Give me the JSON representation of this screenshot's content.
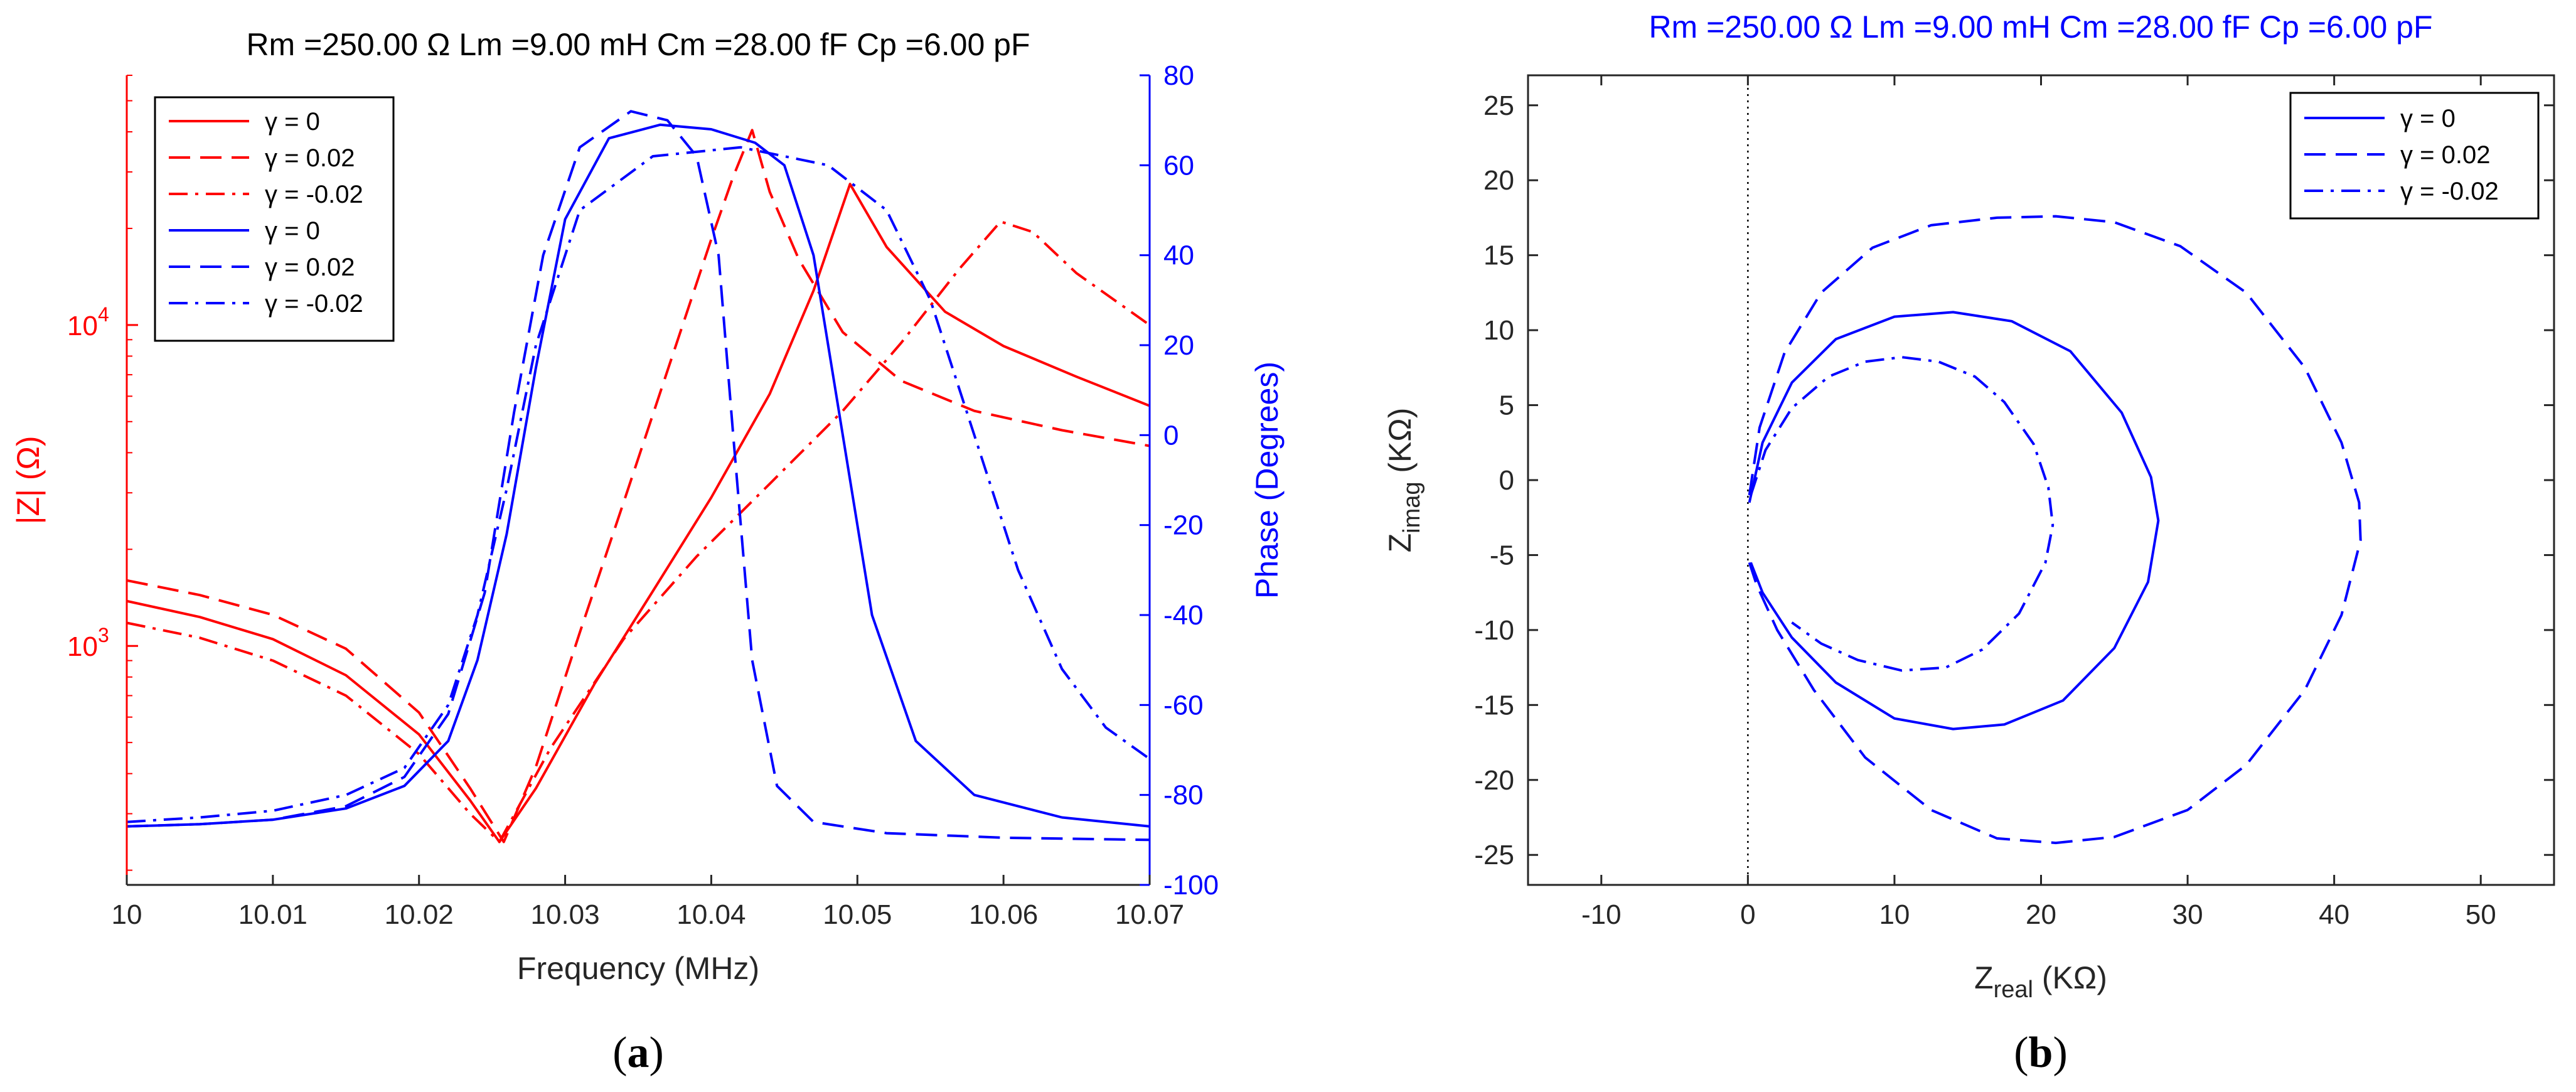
{
  "colors": {
    "red": "#ff0000",
    "blue": "#0000ff",
    "black": "#000000",
    "axisGray": "#262626"
  },
  "chart_data": [
    {
      "type": "line",
      "id": "a",
      "caption": {
        "open": "(",
        "letter": "a",
        "close": ")"
      },
      "title": "Rm =250.00 Ω   Lm =9.00 mH   Cm =28.00 fF   Cp =6.00 pF",
      "xlabel": "Frequency (MHz)",
      "ylabel_left": "|Z| (Ω)",
      "ylabel_right": "Phase (Degrees)",
      "xlim": [
        10.0,
        10.07
      ],
      "ylim_left_log": [
        180,
        60000
      ],
      "ylim_right": [
        -100,
        80
      ],
      "xticks": [
        {
          "v": 10.0,
          "label": "10"
        },
        {
          "v": 10.01,
          "label": "10.01"
        },
        {
          "v": 10.02,
          "label": "10.02"
        },
        {
          "v": 10.03,
          "label": "10.03"
        },
        {
          "v": 10.04,
          "label": "10.04"
        },
        {
          "v": 10.05,
          "label": "10.05"
        },
        {
          "v": 10.06,
          "label": "10.06"
        },
        {
          "v": 10.07,
          "label": "10.07"
        }
      ],
      "yticks_left": [
        {
          "v": 1000,
          "base": "10",
          "exp": "3"
        },
        {
          "v": 10000,
          "base": "10",
          "exp": "4"
        }
      ],
      "yticks_right": [
        {
          "v": 80,
          "label": "80"
        },
        {
          "v": 60,
          "label": "60"
        },
        {
          "v": 40,
          "label": "40"
        },
        {
          "v": 20,
          "label": "20"
        },
        {
          "v": 0,
          "label": "0"
        },
        {
          "v": -20,
          "label": "-20"
        },
        {
          "v": -40,
          "label": "-40"
        },
        {
          "v": -60,
          "label": "-60"
        },
        {
          "v": -80,
          "label": "-80"
        },
        {
          "v": -100,
          "label": "-100"
        }
      ],
      "legend": [
        {
          "label": "γ = 0",
          "color": "red",
          "dash": "solid"
        },
        {
          "label": "γ = 0.02",
          "color": "red",
          "dash": "dashed"
        },
        {
          "label": "γ = -0.02",
          "color": "red",
          "dash": "dashdot"
        },
        {
          "label": "γ = 0",
          "color": "blue",
          "dash": "solid"
        },
        {
          "label": "γ = 0.02",
          "color": "blue",
          "dash": "dashed"
        },
        {
          "label": "γ = -0.02",
          "color": "blue",
          "dash": "dashdot"
        }
      ],
      "series": [
        {
          "name": "|Z| γ = 0",
          "axis": "left",
          "color": "red",
          "dash": "solid",
          "x": [
            10.0,
            10.005,
            10.01,
            10.015,
            10.02,
            10.0235,
            10.0255,
            10.028,
            10.032,
            10.036,
            10.04,
            10.044,
            10.047,
            10.0495,
            10.052,
            10.056,
            10.06,
            10.065,
            10.07
          ],
          "y": [
            1380,
            1230,
            1050,
            810,
            530,
            330,
            245,
            360,
            760,
            1480,
            2900,
            6100,
            12800,
            27500,
            17500,
            11000,
            8600,
            6900,
            5600
          ]
        },
        {
          "name": "|Z| γ = 0.02",
          "axis": "left",
          "color": "red",
          "dash": "dashed",
          "x": [
            10.0,
            10.005,
            10.01,
            10.015,
            10.02,
            10.0235,
            10.0258,
            10.028,
            10.031,
            10.034,
            10.037,
            10.04,
            10.0415,
            10.0428,
            10.044,
            10.046,
            10.049,
            10.053,
            10.058,
            10.064,
            10.07
          ],
          "y": [
            1600,
            1440,
            1250,
            980,
            620,
            360,
            245,
            420,
            1100,
            2800,
            7200,
            18500,
            29000,
            40500,
            26000,
            16000,
            9500,
            6700,
            5400,
            4700,
            4200
          ]
        },
        {
          "name": "|Z| γ = -0.02",
          "axis": "left",
          "color": "red",
          "dash": "dashdot",
          "x": [
            10.0,
            10.005,
            10.01,
            10.015,
            10.02,
            10.0235,
            10.0255,
            10.029,
            10.034,
            10.039,
            10.044,
            10.049,
            10.053,
            10.057,
            10.0598,
            10.062,
            10.065,
            10.07
          ],
          "y": [
            1180,
            1060,
            900,
            700,
            460,
            300,
            245,
            480,
            1050,
            1900,
            3200,
            5400,
            8800,
            15000,
            21000,
            19500,
            14500,
            10000
          ]
        },
        {
          "name": "Phase γ = 0",
          "axis": "right",
          "color": "blue",
          "dash": "solid",
          "x": [
            10.0,
            10.005,
            10.01,
            10.015,
            10.019,
            10.022,
            10.024,
            10.026,
            10.028,
            10.03,
            10.033,
            10.0365,
            10.04,
            10.043,
            10.045,
            10.047,
            10.049,
            10.051,
            10.054,
            10.058,
            10.064,
            10.07
          ],
          "y": [
            -87,
            -86.5,
            -85.5,
            -83,
            -78,
            -68,
            -50,
            -22,
            15,
            48,
            66,
            69,
            68,
            65,
            60,
            40,
            0,
            -40,
            -68,
            -80,
            -85,
            -87
          ]
        },
        {
          "name": "Phase γ = 0.02",
          "axis": "right",
          "color": "blue",
          "dash": "dashed",
          "x": [
            10.0,
            10.005,
            10.01,
            10.015,
            10.019,
            10.022,
            10.0245,
            10.0265,
            10.0285,
            10.031,
            10.0345,
            10.037,
            10.039,
            10.0405,
            10.0415,
            10.0428,
            10.0445,
            10.047,
            10.052,
            10.06,
            10.07
          ],
          "y": [
            -87,
            -86.5,
            -85.5,
            -82.5,
            -76,
            -62,
            -35,
            5,
            40,
            64,
            72,
            70,
            62,
            40,
            0,
            -50,
            -78,
            -86,
            -88.5,
            -89.5,
            -90
          ]
        },
        {
          "name": "Phase γ = -0.02",
          "axis": "right",
          "color": "blue",
          "dash": "dashdot",
          "x": [
            10.0,
            10.005,
            10.01,
            10.015,
            10.019,
            10.022,
            10.024,
            10.026,
            10.028,
            10.031,
            10.036,
            10.042,
            10.048,
            10.052,
            10.055,
            10.058,
            10.061,
            10.064,
            10.067,
            10.07
          ],
          "y": [
            -86,
            -85,
            -83.5,
            -80,
            -74,
            -60,
            -40,
            -12,
            20,
            50,
            62,
            64,
            60,
            50,
            30,
            0,
            -30,
            -52,
            -65,
            -72
          ]
        }
      ]
    },
    {
      "type": "line",
      "id": "b",
      "caption": {
        "open": "(",
        "letter": "b",
        "close": ")"
      },
      "title": "Rm =250.00 Ω   Lm =9.00 mH   Cm =28.00 fF   Cp =6.00 pF",
      "xlabel": {
        "main": "Z",
        "sub": "real",
        "unit": " (KΩ)"
      },
      "ylabel": {
        "main": "Z",
        "sub": "imag",
        "unit": " (KΩ)"
      },
      "xlim": [
        -15,
        55
      ],
      "ylim": [
        -27,
        27
      ],
      "xticks": [
        {
          "v": -10,
          "label": "-10"
        },
        {
          "v": 0,
          "label": "0"
        },
        {
          "v": 10,
          "label": "10"
        },
        {
          "v": 20,
          "label": "20"
        },
        {
          "v": 30,
          "label": "30"
        },
        {
          "v": 40,
          "label": "40"
        },
        {
          "v": 50,
          "label": "50"
        }
      ],
      "yticks": [
        {
          "v": 25,
          "label": "25"
        },
        {
          "v": 20,
          "label": "20"
        },
        {
          "v": 15,
          "label": "15"
        },
        {
          "v": 10,
          "label": "10"
        },
        {
          "v": 5,
          "label": "5"
        },
        {
          "v": 0,
          "label": "0"
        },
        {
          "v": -5,
          "label": "-5"
        },
        {
          "v": -10,
          "label": "-10"
        },
        {
          "v": -15,
          "label": "-15"
        },
        {
          "v": -20,
          "label": "-20"
        },
        {
          "v": -25,
          "label": "-25"
        }
      ],
      "reference_line_x": 0,
      "legend": [
        {
          "label": "γ = 0",
          "dash": "solid"
        },
        {
          "label": "γ = 0.02",
          "dash": "dashed"
        },
        {
          "label": "γ = -0.02",
          "dash": "dashdot"
        }
      ],
      "series": [
        {
          "name": "γ = 0",
          "dash": "solid",
          "x": [
            0.1,
            1.0,
            3.0,
            6.0,
            10.0,
            14.0,
            18.0,
            22.0,
            25.5,
            27.5,
            28.0,
            27.3,
            25.0,
            21.5,
            17.5,
            14.0,
            10.0,
            6.0,
            3.0,
            1.0,
            0.2
          ],
          "y": [
            -1.5,
            2.5,
            6.5,
            9.4,
            10.9,
            11.2,
            10.6,
            8.6,
            4.5,
            0.2,
            -2.7,
            -6.8,
            -11.2,
            -14.7,
            -16.3,
            -16.6,
            -15.9,
            -13.5,
            -10.5,
            -7.5,
            -5.5
          ]
        },
        {
          "name": "γ = 0.02",
          "dash": "dashed",
          "x": [
            0.1,
            0.8,
            2.5,
            5.0,
            8.5,
            12.5,
            17.0,
            21.0,
            25.0,
            29.5,
            34.0,
            38.0,
            40.5,
            41.7,
            41.8,
            40.5,
            38.0,
            34.0,
            30.0,
            25.0,
            21.0,
            17.0,
            12.5,
            8.0,
            4.5,
            2.0,
            0.6,
            0.1
          ],
          "y": [
            -1.0,
            3.5,
            8.5,
            12.5,
            15.5,
            17.0,
            17.5,
            17.6,
            17.2,
            15.6,
            12.5,
            7.5,
            2.5,
            -1.5,
            -4.0,
            -9.0,
            -14.0,
            -19.0,
            -22.0,
            -23.8,
            -24.2,
            -23.9,
            -22.0,
            -18.5,
            -14.0,
            -10.0,
            -7.0,
            -5.5
          ]
        },
        {
          "name": "γ = -0.02",
          "dash": "dashdot",
          "x": [
            0.2,
            1.2,
            3.0,
            5.5,
            8.0,
            10.5,
            13.0,
            15.5,
            17.5,
            19.5,
            20.5,
            20.8,
            20.3,
            18.5,
            16.0,
            13.5,
            10.5,
            7.5,
            5.0,
            3.0
          ],
          "y": [
            -1.0,
            2.0,
            4.8,
            6.9,
            7.9,
            8.2,
            7.9,
            6.9,
            5.2,
            2.4,
            -0.5,
            -3.0,
            -5.5,
            -8.9,
            -11.3,
            -12.5,
            -12.7,
            -12.0,
            -10.9,
            -9.5
          ]
        }
      ]
    }
  ]
}
